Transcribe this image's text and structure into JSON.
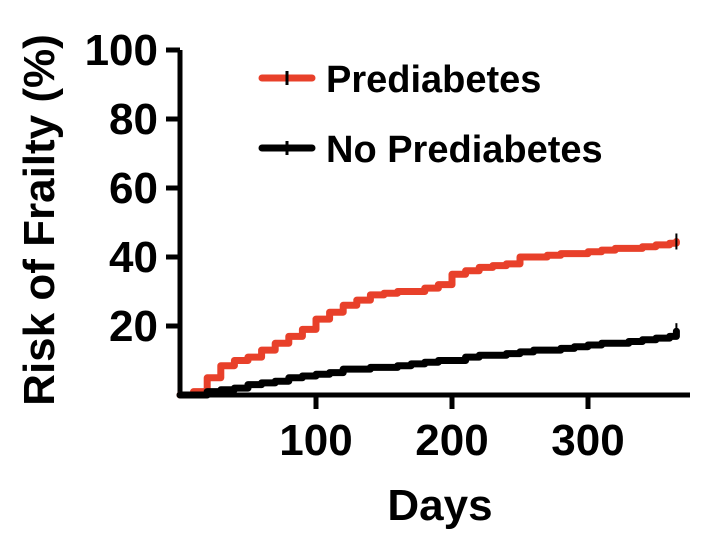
{
  "chart_data": {
    "type": "line",
    "title": "",
    "xlabel": "Days",
    "ylabel": "Risk of Frailty (%)",
    "xlim": [
      0,
      375
    ],
    "ylim": [
      0,
      100
    ],
    "xticks": [
      100,
      200,
      300
    ],
    "yticks": [
      20,
      40,
      60,
      80,
      100
    ],
    "grid": false,
    "legend_position": "top-center",
    "series": [
      {
        "name": "Prediabetes",
        "color": "#e8402a",
        "x": [
          0,
          10,
          20,
          30,
          40,
          50,
          60,
          70,
          80,
          90,
          100,
          110,
          120,
          130,
          140,
          150,
          160,
          170,
          180,
          190,
          200,
          210,
          220,
          230,
          240,
          250,
          260,
          270,
          280,
          290,
          300,
          310,
          320,
          330,
          340,
          350,
          360,
          365
        ],
        "y": [
          0,
          1,
          5,
          8.5,
          10,
          11,
          13,
          15,
          17,
          19,
          22,
          24,
          26,
          27.5,
          29,
          29.5,
          30,
          30,
          31,
          32,
          35,
          36,
          37,
          37.5,
          38,
          40,
          40,
          40.5,
          41,
          41,
          41.5,
          42,
          42.5,
          42.5,
          43,
          43.5,
          44,
          44.5
        ]
      },
      {
        "name": "No Prediabetes",
        "color": "#000000",
        "x": [
          0,
          10,
          20,
          30,
          40,
          50,
          60,
          70,
          80,
          90,
          100,
          110,
          120,
          130,
          140,
          150,
          160,
          170,
          180,
          190,
          200,
          210,
          220,
          230,
          240,
          250,
          260,
          270,
          280,
          290,
          300,
          310,
          320,
          330,
          340,
          350,
          360,
          365
        ],
        "y": [
          0,
          0,
          1,
          1.5,
          2,
          3,
          3.5,
          4,
          5,
          5.5,
          6,
          6.5,
          7.5,
          7.5,
          8,
          8,
          8.5,
          9,
          9.5,
          10,
          10,
          11,
          11.5,
          11.5,
          12,
          12.5,
          13,
          13,
          13.5,
          14,
          14.5,
          15,
          15,
          15.5,
          16,
          16.5,
          17,
          18.5
        ]
      }
    ]
  }
}
